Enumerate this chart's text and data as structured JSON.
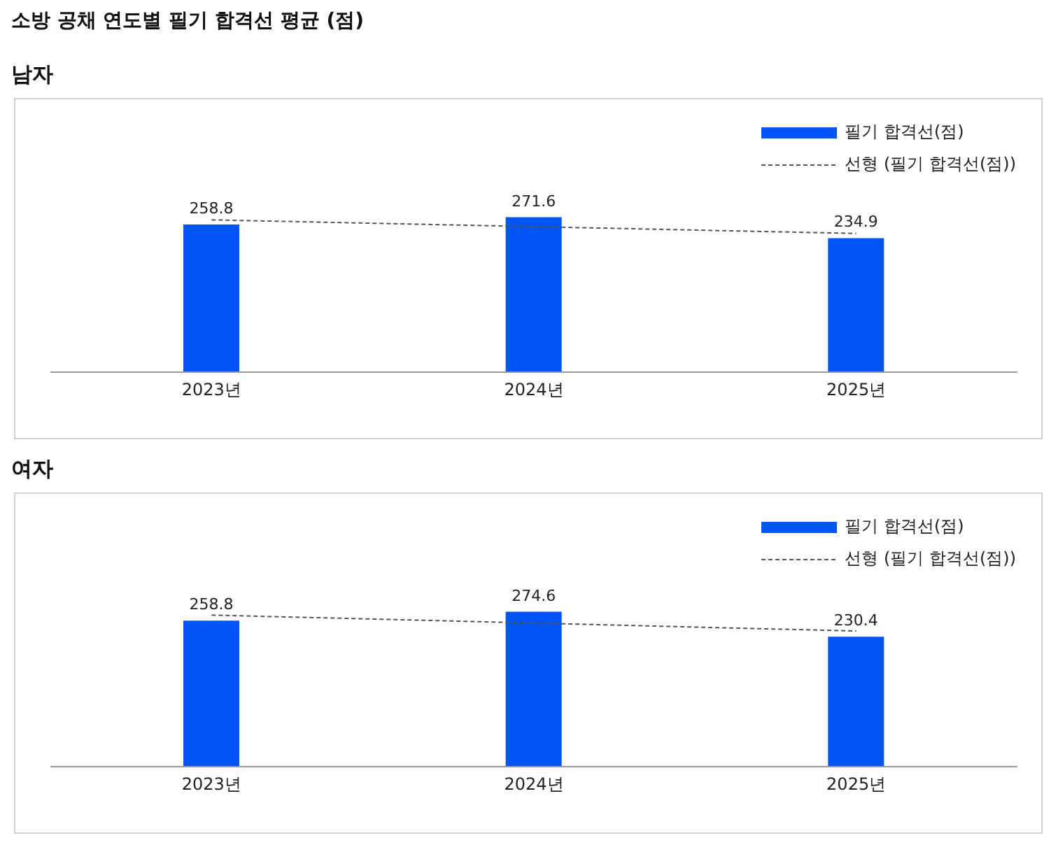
{
  "chart_data": [
    {
      "type": "bar",
      "title": "소방 공채 연도별 필기 합격선 평균 (점)",
      "subtitle": "남자",
      "categories": [
        "2023년",
        "2024년",
        "2025년"
      ],
      "legend": "top right",
      "grid": false,
      "tick_labels": "x",
      "series": [
        {
          "name": "필기 합격선(점)",
          "color": "#0055f4",
          "values": [
            258.8,
            271.6,
            234.9
          ],
          "value_labels": [
            "258.8",
            "271.6",
            "234.9"
          ]
        },
        {
          "type": "line",
          "name": "선형 (필기 합격선(점))",
          "color": "#555555",
          "values": [
            267.05,
            255.1,
            243.15
          ],
          "line_style": "dashed",
          "marker": "none"
        }
      ]
    },
    {
      "type": "bar",
      "subtitle": "여자",
      "categories": [
        "2023년",
        "2024년",
        "2025년"
      ],
      "legend": "top right",
      "grid": false,
      "tick_labels": "x",
      "series": [
        {
          "name": "필기 합격선(점)",
          "color": "#0055f4",
          "values": [
            258.8,
            274.6,
            230.4
          ],
          "value_labels": [
            "258.8",
            "274.6",
            "230.4"
          ]
        },
        {
          "type": "line",
          "name": "선형 (필기 합격선(점))",
          "color": "#555555",
          "values": [
            268.8,
            254.6,
            240.4
          ],
          "line_style": "dashed",
          "marker": "none"
        }
      ]
    }
  ]
}
